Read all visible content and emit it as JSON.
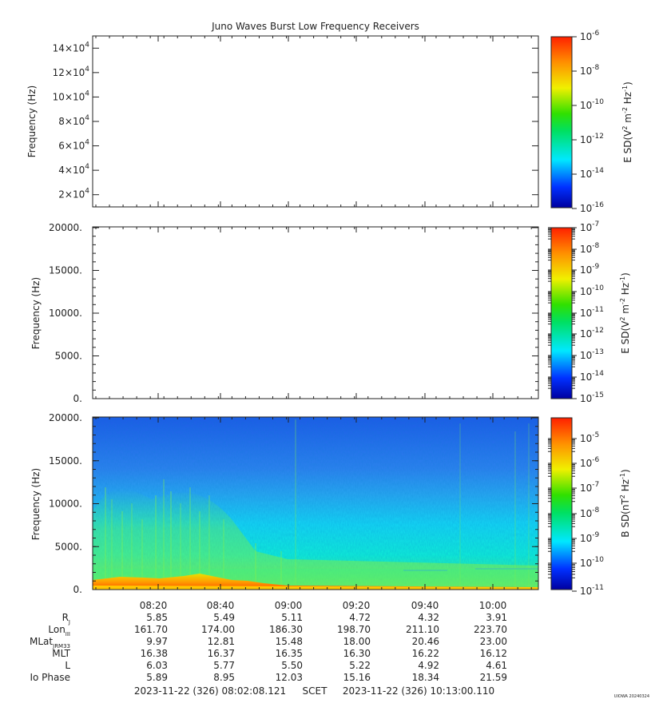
{
  "title": "Juno Waves Burst Low Frequency Receivers",
  "chart_data": [
    {
      "type": "heatmap",
      "panel": "top",
      "ylabel": "Frequency (Hz)",
      "yticks": [
        {
          "base": "2×10",
          "exp": "4"
        },
        {
          "base": "4×10",
          "exp": "4"
        },
        {
          "base": "6×10",
          "exp": "4"
        },
        {
          "base": "8×10",
          "exp": "4"
        },
        {
          "base": "10×10",
          "exp": "4"
        },
        {
          "base": "12×10",
          "exp": "4"
        },
        {
          "base": "14×10",
          "exp": "4"
        }
      ],
      "yvalues": [
        20000,
        40000,
        60000,
        80000,
        100000,
        120000,
        140000
      ],
      "ylim": [
        10000,
        150000
      ],
      "colorbar": {
        "label": "E SD(V2 m-2 Hz-1)",
        "scale": "log",
        "ticks": [
          "10-6",
          "10-8",
          "10-10",
          "10-12",
          "10-14",
          "10-16"
        ],
        "range": [
          1e-16,
          1e-06
        ]
      },
      "data": "empty"
    },
    {
      "type": "heatmap",
      "panel": "middle",
      "ylabel": "Frequency (Hz)",
      "yticks": [
        "20000.",
        "15000.",
        "10000.",
        "5000.",
        "0."
      ],
      "ylim": [
        0,
        20000
      ],
      "colorbar": {
        "label": "E SD(V2 m-2 Hz-1)",
        "scale": "log",
        "ticks": [
          "10-7",
          "10-8",
          "10-9",
          "10-10",
          "10-11",
          "10-12",
          "10-13",
          "10-14",
          "10-15"
        ],
        "range": [
          1e-15,
          1e-07
        ]
      },
      "data": "empty"
    },
    {
      "type": "heatmap",
      "panel": "bottom",
      "ylabel": "Frequency (Hz)",
      "yticks": [
        "20000.",
        "15000.",
        "10000.",
        "5000.",
        "0."
      ],
      "ylim": [
        0,
        20000
      ],
      "xticks": [
        "08:20",
        "08:40",
        "09:00",
        "09:20",
        "09:40",
        "10:00"
      ],
      "xrange": [
        "08:02:08",
        "10:13:00"
      ],
      "colorbar": {
        "label": "B SD(nT2 Hz-1)",
        "scale": "log",
        "ticks": [
          "10-5",
          "10-6",
          "10-7",
          "10-8",
          "10-9",
          "10-10",
          "10-11"
        ],
        "range": [
          1e-11,
          0.0001
        ]
      },
      "description_levels": {
        "background_above_13000Hz": "1e-10",
        "band_5000_12000Hz": "1e-9",
        "band_1000_5000Hz": "1e-8",
        "band_below_1000Hz": "1e-6"
      }
    }
  ],
  "ephemeris": {
    "labels": [
      {
        "main": "R",
        "sub": "J"
      },
      {
        "main": "Lon",
        "sub": "III"
      },
      {
        "main": "MLat",
        "sub": "JRM33"
      },
      {
        "main": "MLT",
        "sub": ""
      },
      {
        "main": "L",
        "sub": ""
      },
      {
        "main": "Io Phase",
        "sub": ""
      }
    ],
    "rows": [
      [
        "5.85",
        "5.49",
        "5.11",
        "4.72",
        "4.32",
        "3.91"
      ],
      [
        "161.70",
        "174.00",
        "186.30",
        "198.70",
        "211.10",
        "223.70"
      ],
      [
        "9.97",
        "12.81",
        "15.48",
        "18.00",
        "20.46",
        "23.00"
      ],
      [
        "16.38",
        "16.37",
        "16.35",
        "16.30",
        "16.22",
        "16.12"
      ],
      [
        "6.03",
        "5.77",
        "5.50",
        "5.22",
        "4.92",
        "4.61"
      ],
      [
        "5.89",
        "8.95",
        "12.03",
        "15.16",
        "18.34",
        "21.59"
      ]
    ]
  },
  "footer": {
    "start": "2023-11-22 (326) 08:02:08.121",
    "scet": "SCET",
    "end": "2023-11-22 (326) 10:13:00.110"
  },
  "watermark": "UIOWA 20240324",
  "colors": {
    "axis": "#222222",
    "spectrogram_low": "#1e50e6",
    "spectrogram_mid": "#00e0ff",
    "spectrogram_high": "#ff3c00"
  }
}
